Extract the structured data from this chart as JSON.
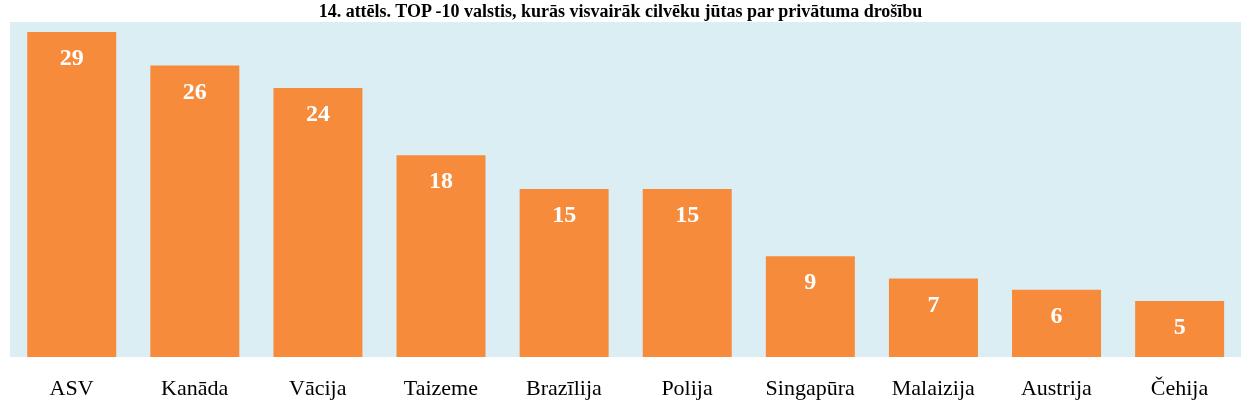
{
  "chart_data": {
    "type": "bar",
    "title": "14. attēls. TOP -10 valstis, kurās visvairāk cilvēku jūtas par privātuma drošību",
    "categories": [
      "ASV",
      "Kanāda",
      "Vācija",
      "Taizeme",
      "Brazīlija",
      "Polija",
      "Singapūra",
      "Malaizija",
      "Austrija",
      "Čehija"
    ],
    "values": [
      29,
      26,
      24,
      18,
      15,
      15,
      9,
      7,
      6,
      5
    ],
    "color": "#f68b3c",
    "data_labels": true
  }
}
